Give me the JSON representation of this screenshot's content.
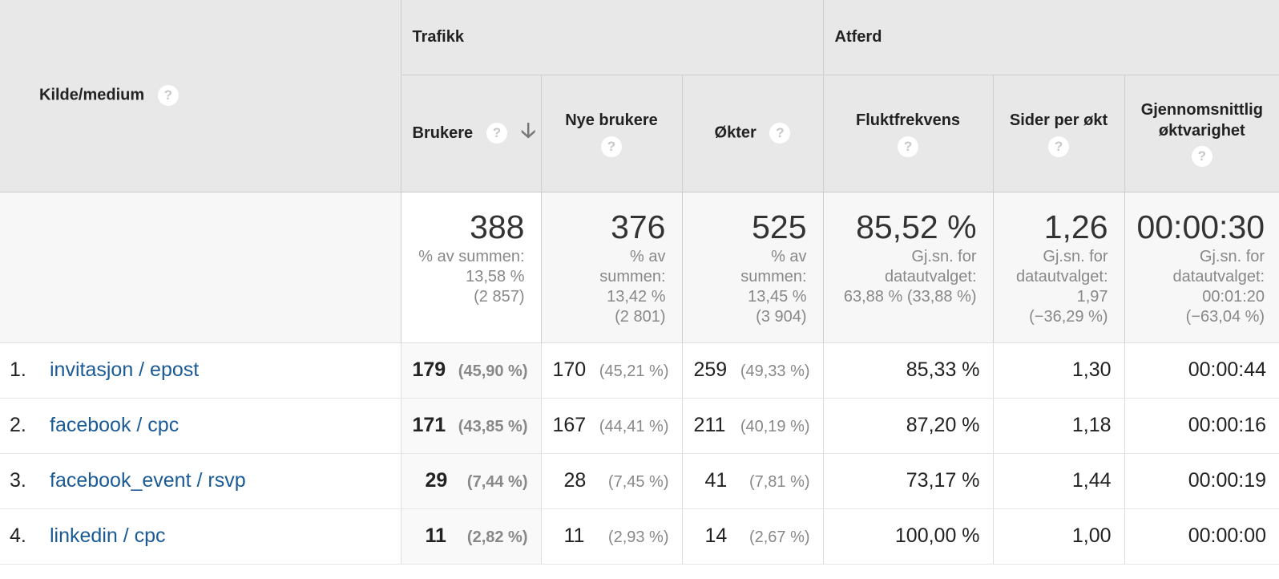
{
  "header": {
    "source_label": "Kilde/medium",
    "group_traffic": "Trafikk",
    "group_behavior": "Atferd",
    "help_glyph": "?",
    "sort_glyph": "🡣",
    "columns": {
      "users": "Brukere",
      "new_users_l1": "Nye brukere",
      "sessions": "Økter",
      "bounce": "Fluktfrekvens",
      "pages_l1": "Sider per økt",
      "duration_l1": "Gjennomsnittlig",
      "duration_l2": "øktvarighet"
    }
  },
  "totals": {
    "users": {
      "value": "388",
      "l1": "% av summen:",
      "l2": "13,58 %",
      "l3": "(2 857)"
    },
    "new_users": {
      "value": "376",
      "l1": "% av",
      "l2": "summen:",
      "l3": "13,42 %",
      "l4": "(2 801)"
    },
    "sessions": {
      "value": "525",
      "l1": "% av",
      "l2": "summen:",
      "l3": "13,45 %",
      "l4": "(3 904)"
    },
    "bounce": {
      "value": "85,52 %",
      "l1": "Gj.sn. for",
      "l2": "datautvalget:",
      "l3": "63,88 % (33,88 %)"
    },
    "pages": {
      "value": "1,26",
      "l1": "Gj.sn. for",
      "l2": "datautvalget:",
      "l3": "1,97",
      "l4": "(−36,29 %)"
    },
    "duration": {
      "value": "00:00:30",
      "l1": "Gj.sn. for",
      "l2": "datautvalget:",
      "l3": "00:01:20",
      "l4": "(−63,04 %)"
    }
  },
  "rows": [
    {
      "idx": "1.",
      "source": "invitasjon / epost",
      "users": "179",
      "users_pct": "(45,90 %)",
      "new_users": "170",
      "new_users_pct": "(45,21 %)",
      "sessions": "259",
      "sessions_pct": "(49,33 %)",
      "bounce": "85,33 %",
      "pages": "1,30",
      "duration": "00:00:44"
    },
    {
      "idx": "2.",
      "source": "facebook / cpc",
      "users": "171",
      "users_pct": "(43,85 %)",
      "new_users": "167",
      "new_users_pct": "(44,41 %)",
      "sessions": "211",
      "sessions_pct": "(40,19 %)",
      "bounce": "87,20 %",
      "pages": "1,18",
      "duration": "00:00:16"
    },
    {
      "idx": "3.",
      "source": "facebook_event / rsvp",
      "users": "29",
      "users_pct": "(7,44 %)",
      "new_users": "28",
      "new_users_pct": "(7,45 %)",
      "sessions": "41",
      "sessions_pct": "(7,81 %)",
      "bounce": "73,17 %",
      "pages": "1,44",
      "duration": "00:00:19"
    },
    {
      "idx": "4.",
      "source": "linkedin / cpc",
      "users": "11",
      "users_pct": "(2,82 %)",
      "new_users": "11",
      "new_users_pct": "(2,93 %)",
      "sessions": "14",
      "sessions_pct": "(2,67 %)",
      "bounce": "100,00 %",
      "pages": "1,00",
      "duration": "00:00:00"
    }
  ]
}
